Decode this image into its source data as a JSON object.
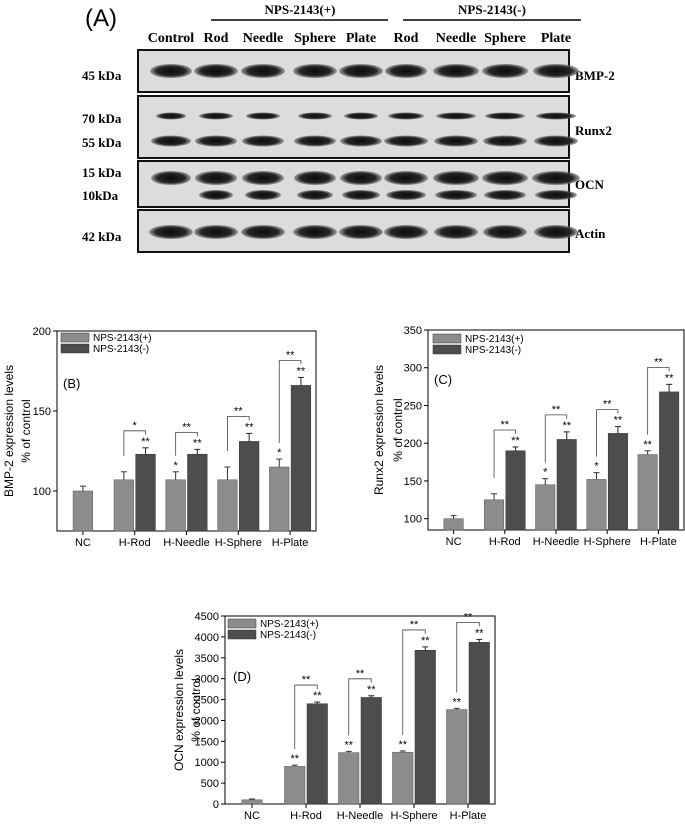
{
  "blot_panel": {
    "panel_label": "(A)",
    "groups": [
      {
        "label": "NPS-2143(+)"
      },
      {
        "label": "NPS-2143(-)"
      }
    ],
    "lanes": [
      "Control",
      "Rod",
      "Needle",
      "Sphere",
      "Plate",
      "Rod",
      "Needle",
      "Sphere",
      "Plate"
    ],
    "rows": [
      {
        "protein": "BMP-2",
        "markers": [
          "45 kDa"
        ]
      },
      {
        "protein": "Runx2",
        "markers": [
          "70 kDa",
          "55 kDa"
        ]
      },
      {
        "protein": "OCN",
        "markers": [
          "15 kDa",
          "10kDa"
        ]
      },
      {
        "protein": "Actin",
        "markers": [
          "42 kDa"
        ]
      }
    ]
  },
  "chart_data": [
    {
      "type": "bar",
      "panel_label": "(B)",
      "ylabel": [
        "BMP-2 expression levels",
        "% of control"
      ],
      "categories": [
        "NC",
        "H-Rod",
        "H-Needle",
        "H-Sphere",
        "H-Plate"
      ],
      "series": [
        {
          "name": "NPS-2143(+)",
          "color": "#8c8c8c",
          "values": [
            100,
            107,
            107,
            107,
            115
          ],
          "errors": [
            3,
            5,
            5,
            8,
            5
          ]
        },
        {
          "name": "NPS-2143(-)",
          "color": "#4d4d4d",
          "values": [
            null,
            123,
            123,
            131,
            166
          ],
          "errors": [
            null,
            4,
            3,
            5,
            5
          ]
        }
      ],
      "ylim": [
        75,
        200
      ],
      "yticks": [
        100,
        150,
        200
      ],
      "significance_over": [
        "",
        "",
        "*",
        "",
        "*"
      ],
      "significance_dark": [
        "",
        "**",
        "**",
        "**",
        "**"
      ],
      "comparisons": [
        "",
        "*",
        "**",
        "**",
        "**"
      ],
      "legend": "top-left"
    },
    {
      "type": "bar",
      "panel_label": "(C)",
      "ylabel": [
        "Runx2 expression levels",
        "% of control"
      ],
      "categories": [
        "NC",
        "H-Rod",
        "H-Needle",
        "H-Sphere",
        "H-Plate"
      ],
      "series": [
        {
          "name": "NPS-2143(+)",
          "color": "#8c8c8c",
          "values": [
            100,
            125,
            145,
            152,
            185
          ],
          "errors": [
            4,
            8,
            8,
            9,
            5
          ]
        },
        {
          "name": "NPS-2143(-)",
          "color": "#4d4d4d",
          "values": [
            null,
            190,
            205,
            213,
            268
          ],
          "errors": [
            null,
            5,
            10,
            9,
            10
          ]
        }
      ],
      "ylim": [
        85,
        350
      ],
      "yticks": [
        100,
        150,
        200,
        250,
        300,
        350
      ],
      "significance_over": [
        "",
        "",
        "*",
        "*",
        "**"
      ],
      "significance_dark": [
        "",
        "**",
        "**",
        "**",
        "**"
      ],
      "comparisons": [
        "",
        "**",
        "**",
        "**",
        "**"
      ],
      "legend": "top-left"
    },
    {
      "type": "bar",
      "panel_label": "(D)",
      "ylabel": [
        "OCN expression levels",
        "% of control"
      ],
      "categories": [
        "NC",
        "H-Rod",
        "H-Needle",
        "H-Sphere",
        "H-Plate"
      ],
      "series": [
        {
          "name": "NPS-2143(+)",
          "color": "#8c8c8c",
          "values": [
            100,
            900,
            1230,
            1240,
            2260
          ],
          "errors": [
            20,
            30,
            30,
            30,
            30
          ]
        },
        {
          "name": "NPS-2143(-)",
          "color": "#4d4d4d",
          "values": [
            null,
            2400,
            2550,
            3680,
            3870
          ],
          "errors": [
            null,
            40,
            40,
            80,
            70
          ]
        }
      ],
      "ylim": [
        0,
        4500
      ],
      "yticks": [
        0,
        500,
        1000,
        1500,
        2000,
        2500,
        3000,
        3500,
        4000,
        4500
      ],
      "significance_over": [
        "",
        "**",
        "**",
        "**",
        "**"
      ],
      "significance_dark": [
        "",
        "**",
        "**",
        "**",
        "**"
      ],
      "comparisons": [
        "",
        "**",
        "**",
        "**",
        "**"
      ],
      "legend": "top-left"
    }
  ]
}
